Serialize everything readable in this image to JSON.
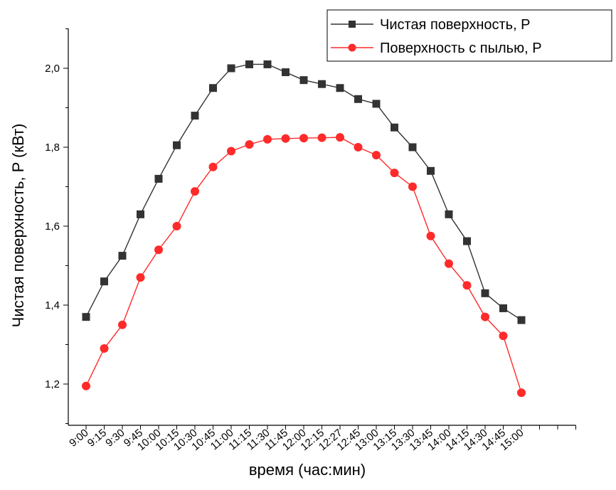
{
  "chart_data": {
    "type": "line",
    "categories": [
      "9:00",
      "9:15",
      "9:30",
      "9:45",
      "10:00",
      "10:15",
      "10:30",
      "10:45",
      "11:00",
      "11:15",
      "11:30",
      "11:45",
      "12:00",
      "12:15",
      "12:27",
      "12:45",
      "13:00",
      "13:15",
      "13:30",
      "13:45",
      "14:00",
      "14:15",
      "14:30",
      "14:45",
      "15:00"
    ],
    "series": [
      {
        "name": "Чистая поверхность, P",
        "color": "#333333",
        "marker": "square",
        "values": [
          1.37,
          1.46,
          1.525,
          1.63,
          1.72,
          1.805,
          1.88,
          1.95,
          2.0,
          2.01,
          2.01,
          1.99,
          1.97,
          1.96,
          1.95,
          1.922,
          1.91,
          1.85,
          1.8,
          1.74,
          1.63,
          1.562,
          1.43,
          1.392,
          1.362
        ]
      },
      {
        "name": "Поверхность с пылью, P",
        "color": "#ff2a2a",
        "marker": "circle",
        "values": [
          1.195,
          1.29,
          1.35,
          1.47,
          1.54,
          1.6,
          1.688,
          1.75,
          1.79,
          1.807,
          1.82,
          1.822,
          1.823,
          1.824,
          1.825,
          1.8,
          1.78,
          1.735,
          1.7,
          1.575,
          1.505,
          1.45,
          1.37,
          1.322,
          1.178
        ]
      }
    ],
    "xlabel": "время (час:мин)",
    "ylabel": "Чистая поверхность, P (кВт)",
    "yticks": [
      "1,2",
      "1,4",
      "1,6",
      "1,8",
      "2,0"
    ],
    "ylim": [
      1.1,
      2.1
    ],
    "grid": false,
    "legend_position": "top-right"
  }
}
